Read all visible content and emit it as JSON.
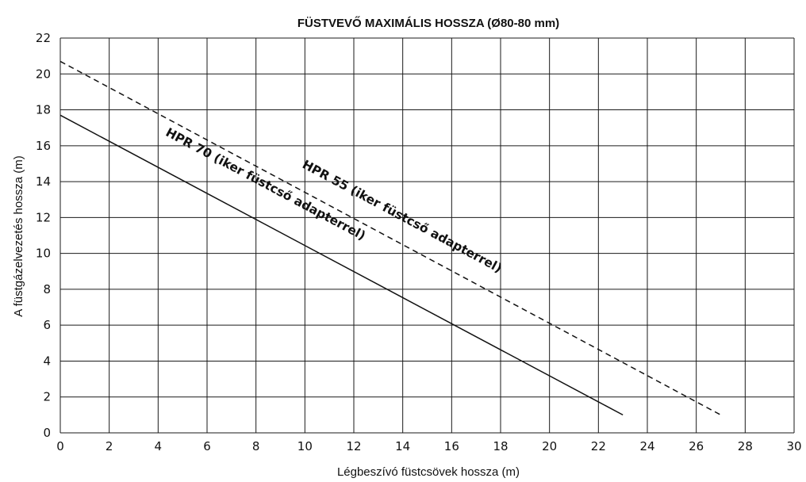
{
  "chart_data": {
    "type": "line",
    "title": "FÜSTVEVŐ MAXIMÁLIS HOSSZA  (Ø80-80 mm)",
    "xlabel": "Légbeszívó füstcsövek hossza  (m)",
    "ylabel": "A füstgázelvezetés hossza  (m)",
    "xlim": [
      0,
      30
    ],
    "ylim": [
      0,
      22
    ],
    "xticks": [
      0,
      2,
      4,
      6,
      8,
      10,
      12,
      14,
      16,
      18,
      20,
      22,
      24,
      26,
      28,
      30
    ],
    "yticks": [
      0,
      2,
      4,
      6,
      8,
      10,
      12,
      14,
      16,
      18,
      20,
      22
    ],
    "grid": true,
    "series": [
      {
        "name": "HPR 55 (iker füstcső adapterrel)",
        "style": "dashed",
        "color": "#111111",
        "x": [
          0,
          27
        ],
        "y": [
          20.7,
          1
        ]
      },
      {
        "name": "HPR 70 (iker füstcső adapterrel)",
        "style": "solid",
        "color": "#111111",
        "x": [
          0,
          23
        ],
        "y": [
          17.7,
          1
        ]
      }
    ]
  }
}
